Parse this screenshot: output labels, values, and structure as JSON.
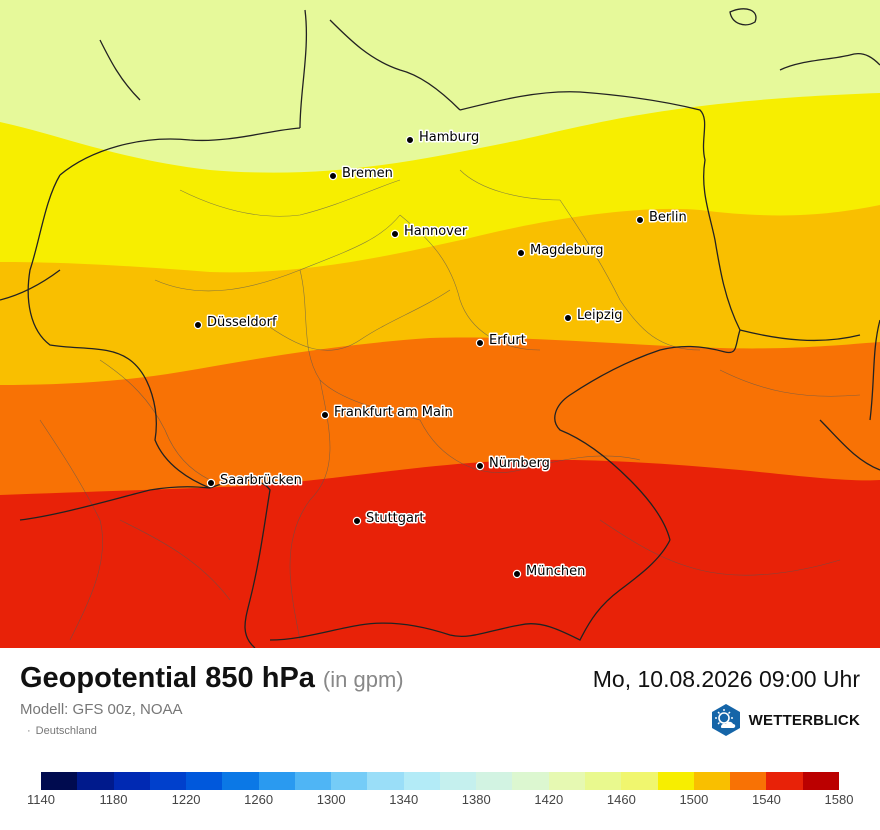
{
  "title": "Geopotential 850 hPa",
  "unit": "(in gpm)",
  "model": "Modell: GFS 00z, NOAA",
  "region": "Deutschland",
  "datetime": "Mo, 10.08.2026 09:00 Uhr",
  "brand": "WETTERBLICK",
  "brand_icon": "weather-sun-cloud-hexagon-icon",
  "cities": [
    "Hamburg",
    "Bremen",
    "Berlin",
    "Hannover",
    "Magdeburg",
    "Düsseldorf",
    "Leipzig",
    "Erfurt",
    "Frankfurt am Main",
    "Nürnberg",
    "Saarbrücken",
    "Stuttgart",
    "München"
  ],
  "legend": {
    "colors": [
      "#000b4f",
      "#001a8c",
      "#0029b3",
      "#0040cc",
      "#0058dc",
      "#0b78e6",
      "#2a9af0",
      "#4fb5f5",
      "#75ccf7",
      "#9adef8",
      "#b3ebf7",
      "#c5f0ee",
      "#d2f3e2",
      "#dcf7d0",
      "#e6f9b2",
      "#e9f98e",
      "#f0f66e",
      "#f7ee00",
      "#f9bf00",
      "#f87205",
      "#e82208",
      "#bb0000"
    ],
    "tick_labels": [
      "1140",
      "1180",
      "1220",
      "1260",
      "1300",
      "1340",
      "1380",
      "1420",
      "1460",
      "1500",
      "1540",
      "1580"
    ]
  },
  "bands": [
    {
      "label": "1460-1480",
      "color": "#e6f99a"
    },
    {
      "label": "1480-1500",
      "color": "#f7ee00"
    },
    {
      "label": "1500-1520",
      "color": "#f9bf00"
    },
    {
      "label": "1520-1540",
      "color": "#f87205"
    },
    {
      "label": "1540-1560",
      "color": "#e82208"
    }
  ]
}
